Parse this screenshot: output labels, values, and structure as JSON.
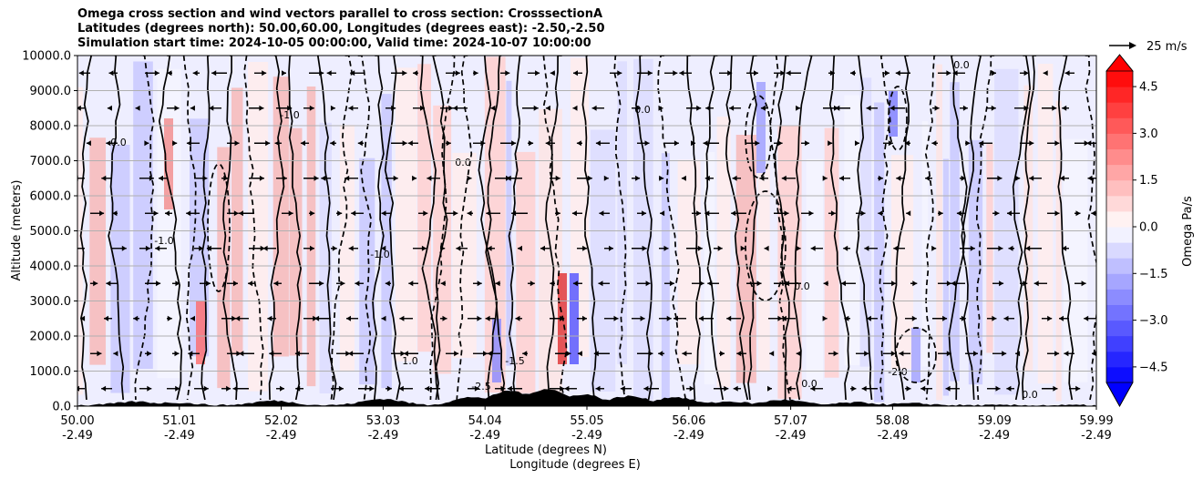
{
  "chart_data": {
    "type": "contour",
    "title_lines": [
      "Omega cross section and wind vectors parallel to cross section: CrosssectionA",
      "Latitudes (degrees north): 50.00,60.00, Longitudes (degrees east): -2.50,-2.50",
      "Simulation start time: 2024-10-05 00:00:00, Valid time: 2024-10-07 10:00:00"
    ],
    "ylabel": "Altitude (meters)",
    "xlabel_lines": [
      "Latitude (degrees N)",
      "Longitude (degrees E)"
    ],
    "ylim": [
      0,
      10000
    ],
    "y_ticks": [
      0,
      1000,
      2000,
      3000,
      4000,
      5000,
      6000,
      7000,
      8000,
      9000,
      10000
    ],
    "y_tick_labels": [
      "0.0",
      "1000.0",
      "2000.0",
      "3000.0",
      "4000.0",
      "5000.0",
      "6000.0",
      "7000.0",
      "8000.0",
      "9000.0",
      "10000.0"
    ],
    "x_ticks": [
      {
        "lat": "50.00",
        "lon": "-2.49"
      },
      {
        "lat": "51.01",
        "lon": "-2.49"
      },
      {
        "lat": "52.02",
        "lon": "-2.49"
      },
      {
        "lat": "53.03",
        "lon": "-2.49"
      },
      {
        "lat": "54.04",
        "lon": "-2.49"
      },
      {
        "lat": "55.05",
        "lon": "-2.49"
      },
      {
        "lat": "56.06",
        "lon": "-2.49"
      },
      {
        "lat": "57.07",
        "lon": "-2.49"
      },
      {
        "lat": "58.08",
        "lon": "-2.49"
      },
      {
        "lat": "59.09",
        "lon": "-2.49"
      },
      {
        "lat": "59.99",
        "lon": "-2.49"
      }
    ],
    "grid": "horizontal",
    "colorbar": {
      "label": "Omega Pa/s",
      "range": [
        -5.0,
        5.0
      ],
      "ticks": [
        4.5,
        3.0,
        1.5,
        0.0,
        -1.5,
        -3.0,
        -4.5
      ],
      "tick_labels": [
        "4.5",
        "3.0",
        "1.5",
        "0.0",
        "−1.5",
        "−3.0",
        "−4.5"
      ],
      "colormap": "bwr",
      "extend": "both"
    },
    "quiver_key": {
      "label": "25 m/s",
      "speed": 25
    },
    "contour_labels": [
      "0.0",
      "-1.0",
      "1.0",
      "-2.0",
      "-2.5",
      "-1.5",
      "0.5"
    ],
    "colors": {
      "positive": "#ff0000",
      "negative": "#0000ff",
      "terrain": "#000000"
    }
  }
}
